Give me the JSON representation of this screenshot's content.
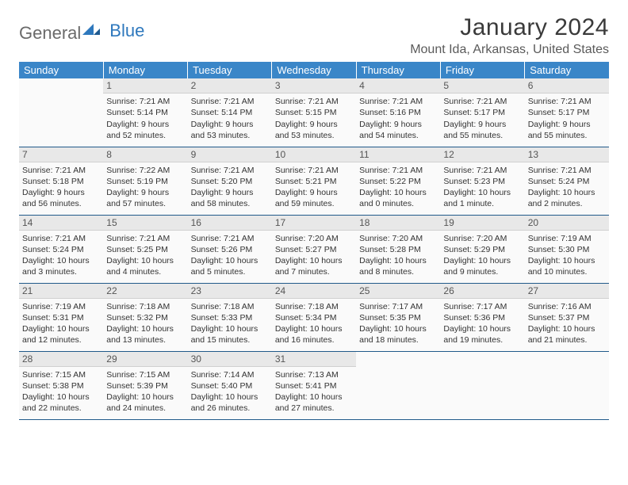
{
  "logo": {
    "text_a": "General",
    "text_b": "Blue"
  },
  "title": "January 2024",
  "location": "Mount Ida, Arkansas, United States",
  "colors": {
    "header_bg": "#3a86c8",
    "header_text": "#ffffff",
    "rule": "#215a8a",
    "daynum_bg": "#e8e8e8",
    "logo_gray": "#6a6a6a",
    "logo_blue": "#2e78bd"
  },
  "dow": [
    "Sunday",
    "Monday",
    "Tuesday",
    "Wednesday",
    "Thursday",
    "Friday",
    "Saturday"
  ],
  "weeks": [
    [
      {
        "n": "",
        "sr": "",
        "ss": "",
        "d1": "",
        "d2": ""
      },
      {
        "n": "1",
        "sr": "Sunrise: 7:21 AM",
        "ss": "Sunset: 5:14 PM",
        "d1": "Daylight: 9 hours",
        "d2": "and 52 minutes."
      },
      {
        "n": "2",
        "sr": "Sunrise: 7:21 AM",
        "ss": "Sunset: 5:14 PM",
        "d1": "Daylight: 9 hours",
        "d2": "and 53 minutes."
      },
      {
        "n": "3",
        "sr": "Sunrise: 7:21 AM",
        "ss": "Sunset: 5:15 PM",
        "d1": "Daylight: 9 hours",
        "d2": "and 53 minutes."
      },
      {
        "n": "4",
        "sr": "Sunrise: 7:21 AM",
        "ss": "Sunset: 5:16 PM",
        "d1": "Daylight: 9 hours",
        "d2": "and 54 minutes."
      },
      {
        "n": "5",
        "sr": "Sunrise: 7:21 AM",
        "ss": "Sunset: 5:17 PM",
        "d1": "Daylight: 9 hours",
        "d2": "and 55 minutes."
      },
      {
        "n": "6",
        "sr": "Sunrise: 7:21 AM",
        "ss": "Sunset: 5:17 PM",
        "d1": "Daylight: 9 hours",
        "d2": "and 55 minutes."
      }
    ],
    [
      {
        "n": "7",
        "sr": "Sunrise: 7:21 AM",
        "ss": "Sunset: 5:18 PM",
        "d1": "Daylight: 9 hours",
        "d2": "and 56 minutes."
      },
      {
        "n": "8",
        "sr": "Sunrise: 7:22 AM",
        "ss": "Sunset: 5:19 PM",
        "d1": "Daylight: 9 hours",
        "d2": "and 57 minutes."
      },
      {
        "n": "9",
        "sr": "Sunrise: 7:21 AM",
        "ss": "Sunset: 5:20 PM",
        "d1": "Daylight: 9 hours",
        "d2": "and 58 minutes."
      },
      {
        "n": "10",
        "sr": "Sunrise: 7:21 AM",
        "ss": "Sunset: 5:21 PM",
        "d1": "Daylight: 9 hours",
        "d2": "and 59 minutes."
      },
      {
        "n": "11",
        "sr": "Sunrise: 7:21 AM",
        "ss": "Sunset: 5:22 PM",
        "d1": "Daylight: 10 hours",
        "d2": "and 0 minutes."
      },
      {
        "n": "12",
        "sr": "Sunrise: 7:21 AM",
        "ss": "Sunset: 5:23 PM",
        "d1": "Daylight: 10 hours",
        "d2": "and 1 minute."
      },
      {
        "n": "13",
        "sr": "Sunrise: 7:21 AM",
        "ss": "Sunset: 5:24 PM",
        "d1": "Daylight: 10 hours",
        "d2": "and 2 minutes."
      }
    ],
    [
      {
        "n": "14",
        "sr": "Sunrise: 7:21 AM",
        "ss": "Sunset: 5:24 PM",
        "d1": "Daylight: 10 hours",
        "d2": "and 3 minutes."
      },
      {
        "n": "15",
        "sr": "Sunrise: 7:21 AM",
        "ss": "Sunset: 5:25 PM",
        "d1": "Daylight: 10 hours",
        "d2": "and 4 minutes."
      },
      {
        "n": "16",
        "sr": "Sunrise: 7:21 AM",
        "ss": "Sunset: 5:26 PM",
        "d1": "Daylight: 10 hours",
        "d2": "and 5 minutes."
      },
      {
        "n": "17",
        "sr": "Sunrise: 7:20 AM",
        "ss": "Sunset: 5:27 PM",
        "d1": "Daylight: 10 hours",
        "d2": "and 7 minutes."
      },
      {
        "n": "18",
        "sr": "Sunrise: 7:20 AM",
        "ss": "Sunset: 5:28 PM",
        "d1": "Daylight: 10 hours",
        "d2": "and 8 minutes."
      },
      {
        "n": "19",
        "sr": "Sunrise: 7:20 AM",
        "ss": "Sunset: 5:29 PM",
        "d1": "Daylight: 10 hours",
        "d2": "and 9 minutes."
      },
      {
        "n": "20",
        "sr": "Sunrise: 7:19 AM",
        "ss": "Sunset: 5:30 PM",
        "d1": "Daylight: 10 hours",
        "d2": "and 10 minutes."
      }
    ],
    [
      {
        "n": "21",
        "sr": "Sunrise: 7:19 AM",
        "ss": "Sunset: 5:31 PM",
        "d1": "Daylight: 10 hours",
        "d2": "and 12 minutes."
      },
      {
        "n": "22",
        "sr": "Sunrise: 7:18 AM",
        "ss": "Sunset: 5:32 PM",
        "d1": "Daylight: 10 hours",
        "d2": "and 13 minutes."
      },
      {
        "n": "23",
        "sr": "Sunrise: 7:18 AM",
        "ss": "Sunset: 5:33 PM",
        "d1": "Daylight: 10 hours",
        "d2": "and 15 minutes."
      },
      {
        "n": "24",
        "sr": "Sunrise: 7:18 AM",
        "ss": "Sunset: 5:34 PM",
        "d1": "Daylight: 10 hours",
        "d2": "and 16 minutes."
      },
      {
        "n": "25",
        "sr": "Sunrise: 7:17 AM",
        "ss": "Sunset: 5:35 PM",
        "d1": "Daylight: 10 hours",
        "d2": "and 18 minutes."
      },
      {
        "n": "26",
        "sr": "Sunrise: 7:17 AM",
        "ss": "Sunset: 5:36 PM",
        "d1": "Daylight: 10 hours",
        "d2": "and 19 minutes."
      },
      {
        "n": "27",
        "sr": "Sunrise: 7:16 AM",
        "ss": "Sunset: 5:37 PM",
        "d1": "Daylight: 10 hours",
        "d2": "and 21 minutes."
      }
    ],
    [
      {
        "n": "28",
        "sr": "Sunrise: 7:15 AM",
        "ss": "Sunset: 5:38 PM",
        "d1": "Daylight: 10 hours",
        "d2": "and 22 minutes."
      },
      {
        "n": "29",
        "sr": "Sunrise: 7:15 AM",
        "ss": "Sunset: 5:39 PM",
        "d1": "Daylight: 10 hours",
        "d2": "and 24 minutes."
      },
      {
        "n": "30",
        "sr": "Sunrise: 7:14 AM",
        "ss": "Sunset: 5:40 PM",
        "d1": "Daylight: 10 hours",
        "d2": "and 26 minutes."
      },
      {
        "n": "31",
        "sr": "Sunrise: 7:13 AM",
        "ss": "Sunset: 5:41 PM",
        "d1": "Daylight: 10 hours",
        "d2": "and 27 minutes."
      },
      {
        "n": "",
        "sr": "",
        "ss": "",
        "d1": "",
        "d2": ""
      },
      {
        "n": "",
        "sr": "",
        "ss": "",
        "d1": "",
        "d2": ""
      },
      {
        "n": "",
        "sr": "",
        "ss": "",
        "d1": "",
        "d2": ""
      }
    ]
  ]
}
